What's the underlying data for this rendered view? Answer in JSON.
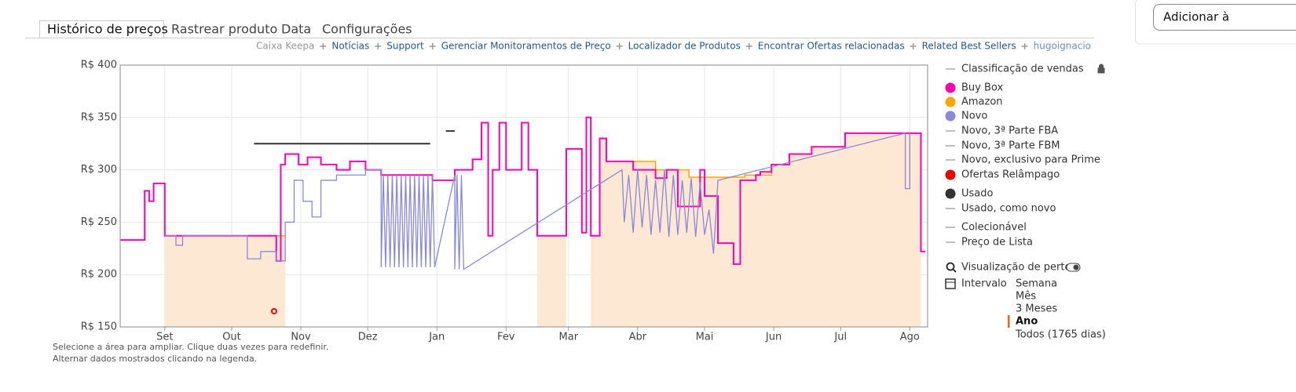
{
  "tabs": [
    "Histórico de preços",
    "Rastrear produto",
    "Data",
    "Configurações"
  ],
  "active_tab": 0,
  "button": "Adicionar à",
  "links": [
    "Caixa Keepa",
    "Notícias",
    "Support",
    "Gerenciar Monitoramentos de Preço",
    "Localizador de Produtos",
    "Encontrar Ofertas relacionadas",
    "Related Best Sellers",
    "hugoignacio"
  ],
  "notes": [
    "Selecione a área para ampliar. Clique duas vezes para redefinir.",
    "Alternar dados mostrados clicando na legenda."
  ],
  "options": {
    "close_view": "Visualização de perto",
    "range_label": "Intervalo",
    "ranges": [
      "Semana",
      "Mês",
      "3 Meses",
      "Ano",
      "Todos (1765 dias)"
    ],
    "selected_range": 3
  },
  "chart_data": {
    "type": "line",
    "xlim": [
      0,
      362
    ],
    "xticks": [
      {
        "value": 20,
        "label": "Set"
      },
      {
        "value": 50,
        "label": "Out"
      },
      {
        "value": 81,
        "label": "Nov"
      },
      {
        "value": 111,
        "label": "Dez"
      },
      {
        "value": 142,
        "label": "Jan"
      },
      {
        "value": 173,
        "label": "Fev"
      },
      {
        "value": 201,
        "label": "Mar"
      },
      {
        "value": 232,
        "label": "Abr"
      },
      {
        "value": 262,
        "label": "Mai"
      },
      {
        "value": 293,
        "label": "Jun"
      },
      {
        "value": 323,
        "label": "Jul"
      },
      {
        "value": 354,
        "label": "Ago"
      }
    ],
    "ylim": [
      150,
      400
    ],
    "yticks": [
      {
        "value": 150,
        "label": "R$ 150"
      },
      {
        "value": 200,
        "label": "R$ 200"
      },
      {
        "value": 250,
        "label": "R$ 250"
      },
      {
        "value": 300,
        "label": "R$ 300"
      },
      {
        "value": 350,
        "label": "R$ 350"
      },
      {
        "value": 400,
        "label": "R$ 400"
      }
    ],
    "grid": true,
    "series": [
      {
        "name": "Classificação de vendas",
        "color": "#aaaaaa",
        "marker": "line",
        "x": [],
        "values": []
      },
      {
        "name": "Buy Box",
        "color": "#ff00b4",
        "marker": "dot",
        "style": "line",
        "x": [
          0,
          11,
          11,
          13,
          13,
          15,
          15,
          20,
          20,
          70,
          70,
          72,
          72,
          74,
          74,
          80,
          80,
          84,
          84,
          90,
          90,
          97,
          97,
          103,
          103,
          110,
          110,
          117,
          117,
          140,
          140,
          150,
          150,
          158,
          158,
          162,
          162,
          165,
          165,
          167,
          167,
          170,
          170,
          173,
          173,
          180,
          180,
          183,
          183,
          187,
          187,
          200,
          200,
          207,
          207,
          209,
          209,
          211,
          211,
          215,
          215,
          218,
          218,
          230,
          230,
          240,
          240,
          245,
          245,
          250,
          250,
          260,
          260,
          262,
          262,
          268,
          268,
          275,
          275,
          278,
          278,
          285,
          285,
          287,
          287,
          292,
          292,
          300,
          300,
          310,
          310,
          325,
          325,
          359,
          359,
          361
        ],
        "values": [
          233,
          233,
          280,
          280,
          270,
          270,
          287,
          287,
          237,
          237,
          213,
          213,
          305,
          305,
          315,
          315,
          305,
          305,
          312,
          312,
          305,
          305,
          300,
          300,
          308,
          308,
          300,
          300,
          295,
          295,
          290,
          290,
          300,
          300,
          310,
          310,
          345,
          345,
          237,
          237,
          300,
          300,
          345,
          345,
          300,
          300,
          345,
          345,
          300,
          300,
          237,
          237,
          320,
          320,
          240,
          240,
          350,
          350,
          237,
          237,
          330,
          330,
          308,
          308,
          300,
          300,
          292,
          292,
          300,
          300,
          265,
          265,
          300,
          300,
          275,
          275,
          230,
          230,
          210,
          210,
          290,
          290,
          295,
          295,
          298,
          298,
          305,
          305,
          315,
          315,
          322,
          322,
          335,
          335,
          222,
          222
        ]
      },
      {
        "name": "Amazon",
        "color": "#ffa500",
        "marker": "dot",
        "style": "area",
        "fill": "#fde8d4",
        "x": [
          20,
          74,
          null,
          187,
          200,
          null,
          211,
          215,
          215,
          218,
          218,
          240,
          240,
          255,
          255,
          280,
          280,
          292,
          292,
          300,
          300,
          310,
          310,
          325,
          325,
          359
        ],
        "values": [
          237,
          237,
          null,
          237,
          237,
          null,
          237,
          237,
          330,
          330,
          308,
          308,
          300,
          300,
          293,
          293,
          295,
          295,
          305,
          305,
          315,
          315,
          322,
          322,
          335,
          335
        ]
      },
      {
        "name": "Novo",
        "color": "#8888dd",
        "marker": "dot",
        "style": "line",
        "x": [
          20,
          25,
          25,
          28,
          28,
          57,
          57,
          63,
          63,
          70,
          70,
          74,
          74,
          78,
          78,
          82,
          82,
          86,
          86,
          90,
          90,
          97,
          97,
          110,
          110,
          117,
          117,
          118,
          119,
          120,
          121,
          122,
          123,
          124,
          125,
          126,
          127,
          128,
          129,
          130,
          131,
          132,
          133,
          134,
          135,
          136,
          137,
          138,
          139,
          140,
          141,
          150,
          150,
          151,
          152,
          153,
          154,
          225,
          226,
          228,
          230,
          232,
          234,
          236,
          238,
          240,
          242,
          244,
          246,
          248,
          250,
          252,
          254,
          256,
          258,
          260,
          262,
          264,
          266,
          268,
          352,
          352,
          354,
          354
        ],
        "values": [
          237,
          237,
          228,
          228,
          237,
          237,
          215,
          215,
          222,
          222,
          213,
          213,
          250,
          250,
          290,
          290,
          270,
          270,
          255,
          255,
          290,
          290,
          295,
          295,
          300,
          300,
          207,
          295,
          207,
          295,
          207,
          295,
          207,
          295,
          207,
          295,
          207,
          295,
          207,
          295,
          207,
          295,
          207,
          295,
          207,
          295,
          207,
          295,
          207,
          295,
          207,
          295,
          205,
          295,
          205,
          295,
          205,
          300,
          250,
          295,
          240,
          300,
          245,
          295,
          238,
          290,
          240,
          300,
          236,
          295,
          238,
          290,
          240,
          292,
          236,
          288,
          238,
          262,
          220,
          290,
          335,
          282,
          282,
          335
        ]
      },
      {
        "name": "Novo, 3ª Parte FBA",
        "color": "#aaaaaa",
        "marker": "line",
        "x": [],
        "values": []
      },
      {
        "name": "Novo, 3ª Parte FBM",
        "color": "#aaaaaa",
        "marker": "line",
        "x": [],
        "values": []
      },
      {
        "name": "Novo, exclusivo para Prime",
        "color": "#aaaaaa",
        "marker": "line",
        "x": [],
        "values": []
      },
      {
        "name": "Ofertas Relâmpago",
        "color": "#ee0000",
        "marker": "dot",
        "style": "points",
        "x": [
          69
        ],
        "values": [
          165
        ]
      },
      {
        "name": "Usado",
        "color": "#333333",
        "marker": "dot",
        "style": "line",
        "x": [
          60,
          139,
          null,
          146,
          150
        ],
        "values": [
          325,
          325,
          null,
          337,
          337
        ]
      },
      {
        "name": "Usado, como novo",
        "color": "#aaaaaa",
        "marker": "line",
        "x": [],
        "values": []
      },
      {
        "name": "Colecionável",
        "color": "#aaaaaa",
        "marker": "line",
        "x": [],
        "values": []
      },
      {
        "name": "Preço de Lista",
        "color": "#aaaaaa",
        "marker": "line",
        "x": [],
        "values": []
      }
    ]
  }
}
